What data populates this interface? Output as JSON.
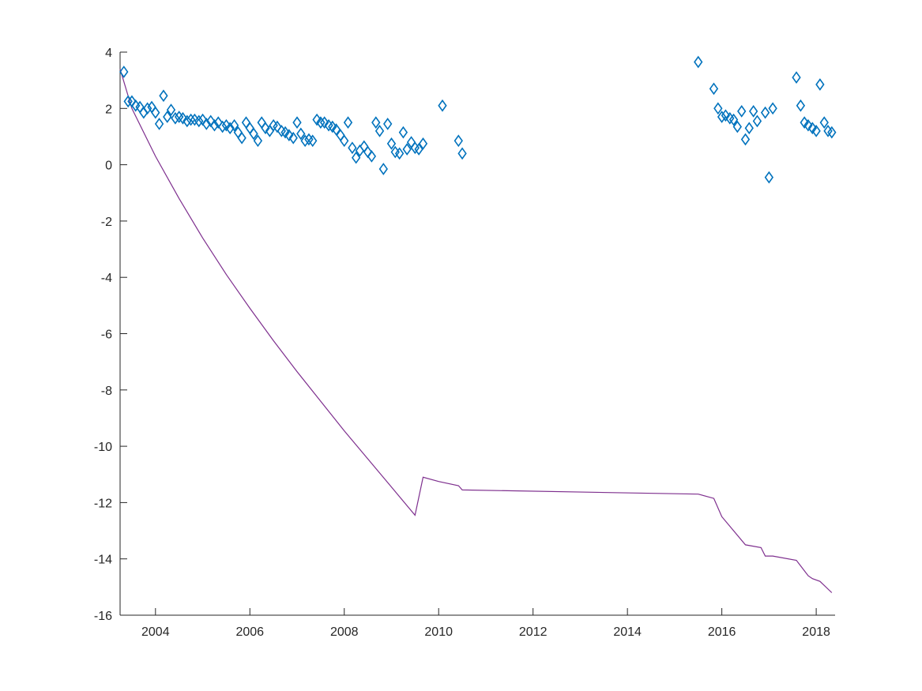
{
  "chart_data": {
    "type": "scatter",
    "title": "",
    "xlabel": "",
    "ylabel": "",
    "x_type": "year",
    "xlim": [
      2003.25,
      2018.4
    ],
    "ylim": [
      -16,
      4
    ],
    "grid": false,
    "x_ticks": [
      2004,
      2006,
      2008,
      2010,
      2012,
      2014,
      2016,
      2018
    ],
    "y_ticks": [
      4,
      2,
      0,
      -2,
      -4,
      -6,
      -8,
      -10,
      -12,
      -14,
      -16
    ],
    "x_tick_labels": [
      "2004",
      "2006",
      "2008",
      "2010",
      "2012",
      "2014",
      "2016",
      "2018"
    ],
    "y_tick_labels": [
      "4",
      "2",
      "0",
      "-2",
      "-4",
      "-6",
      "-8",
      "-10",
      "-12",
      "-14",
      "-16"
    ],
    "series": [
      {
        "type": "scatter",
        "marker": "diamond",
        "color": "#0072BD",
        "x": [
          2003.33,
          2003.42,
          2003.5,
          2003.58,
          2003.67,
          2003.75,
          2003.83,
          2003.92,
          2004.0,
          2004.08,
          2004.17,
          2004.25,
          2004.33,
          2004.42,
          2004.5,
          2004.58,
          2004.67,
          2004.75,
          2004.83,
          2004.92,
          2005.0,
          2005.08,
          2005.17,
          2005.25,
          2005.33,
          2005.42,
          2005.5,
          2005.58,
          2005.67,
          2005.75,
          2005.83,
          2005.92,
          2006.0,
          2006.08,
          2006.17,
          2006.25,
          2006.33,
          2006.42,
          2006.5,
          2006.58,
          2006.67,
          2006.75,
          2006.83,
          2006.92,
          2007.0,
          2007.08,
          2007.17,
          2007.25,
          2007.33,
          2007.42,
          2007.5,
          2007.58,
          2007.67,
          2007.75,
          2007.83,
          2007.92,
          2008.0,
          2008.08,
          2008.17,
          2008.25,
          2008.33,
          2008.42,
          2008.5,
          2008.58,
          2008.67,
          2008.75,
          2008.83,
          2008.92,
          2009.0,
          2009.08,
          2009.17,
          2009.25,
          2009.33,
          2009.42,
          2009.5,
          2009.58,
          2009.67,
          2010.08,
          2010.42,
          2010.5,
          2015.5,
          2015.83,
          2015.92,
          2016.0,
          2016.08,
          2016.17,
          2016.25,
          2016.33,
          2016.42,
          2016.5,
          2016.58,
          2016.67,
          2016.75,
          2016.92,
          2017.0,
          2017.08,
          2017.58,
          2017.67,
          2017.75,
          2017.83,
          2017.92,
          2018.0,
          2018.08,
          2018.17,
          2018.25,
          2018.33
        ],
        "y": [
          3.3,
          2.25,
          2.25,
          2.1,
          2.05,
          1.85,
          2.0,
          2.05,
          1.85,
          1.45,
          2.45,
          1.7,
          1.95,
          1.65,
          1.7,
          1.65,
          1.55,
          1.6,
          1.6,
          1.55,
          1.6,
          1.45,
          1.55,
          1.4,
          1.5,
          1.35,
          1.4,
          1.3,
          1.4,
          1.15,
          0.95,
          1.5,
          1.3,
          1.1,
          0.85,
          1.5,
          1.3,
          1.2,
          1.4,
          1.35,
          1.2,
          1.15,
          1.05,
          0.95,
          1.5,
          1.1,
          0.85,
          0.9,
          0.85,
          1.6,
          1.5,
          1.5,
          1.4,
          1.35,
          1.25,
          1.05,
          0.85,
          1.5,
          0.6,
          0.25,
          0.5,
          0.65,
          0.45,
          0.3,
          1.5,
          1.2,
          -0.15,
          1.45,
          0.75,
          0.45,
          0.4,
          1.15,
          0.55,
          0.8,
          0.6,
          0.55,
          0.75,
          2.1,
          0.85,
          0.4,
          3.65,
          2.7,
          2.0,
          1.7,
          1.75,
          1.65,
          1.6,
          1.35,
          1.9,
          0.9,
          1.3,
          1.9,
          1.55,
          1.85,
          -0.45,
          2.0,
          3.1,
          2.1,
          1.5,
          1.4,
          1.3,
          1.2,
          2.85,
          1.5,
          1.2,
          1.15
        ]
      },
      {
        "type": "line",
        "color": "#7E2F8E",
        "x": [
          2003.25,
          2003.5,
          2004.0,
          2004.5,
          2005.0,
          2005.5,
          2006.0,
          2006.5,
          2007.0,
          2007.5,
          2008.0,
          2008.5,
          2009.0,
          2009.5,
          2009.67,
          2010.0,
          2010.42,
          2010.5,
          2015.5,
          2015.83,
          2016.0,
          2016.5,
          2016.83,
          2016.92,
          2017.08,
          2017.58,
          2017.83,
          2017.92,
          2018.08,
          2018.33
        ],
        "y": [
          3.4,
          2.0,
          0.3,
          -1.2,
          -2.6,
          -3.9,
          -5.1,
          -6.25,
          -7.35,
          -8.4,
          -9.45,
          -10.45,
          -11.45,
          -12.45,
          -11.1,
          -11.25,
          -11.4,
          -11.55,
          -11.7,
          -11.85,
          -12.5,
          -13.5,
          -13.6,
          -13.9,
          -13.9,
          -14.05,
          -14.6,
          -14.7,
          -14.8,
          -15.2
        ]
      }
    ]
  }
}
